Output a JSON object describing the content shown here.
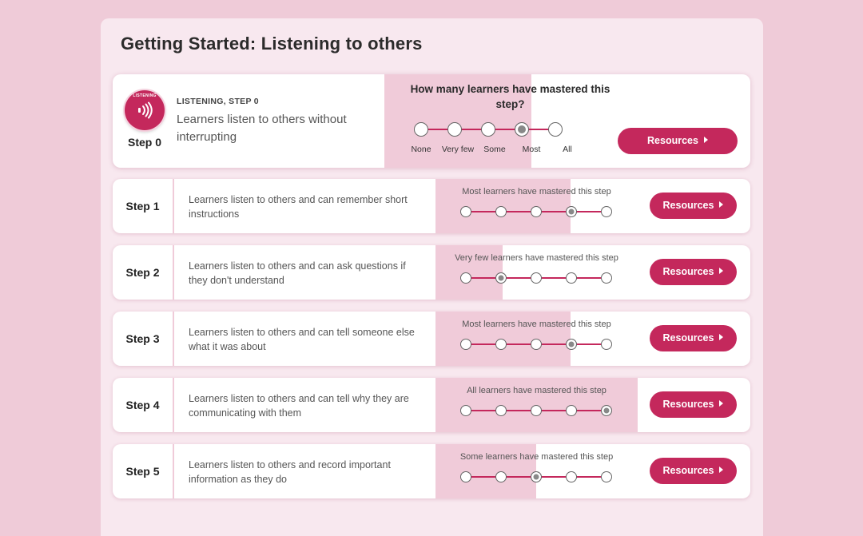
{
  "page": {
    "title": "Getting Started: Listening to others"
  },
  "scale_labels": [
    "None",
    "Very few",
    "Some",
    "Most",
    "All"
  ],
  "hero": {
    "badge_text": "LISTENING",
    "badge_icon": "sound-waves-icon",
    "step_label": "Step 0",
    "kicker": "LISTENING, STEP 0",
    "description": "Learners listen to others without interrupting",
    "question": "How many learners have mastered this step?",
    "selected_index": 3,
    "resources_label": "Resources"
  },
  "steps": [
    {
      "label": "Step 1",
      "description": "Learners listen to others and can remember short instructions",
      "status": "Most learners have mastered this step",
      "selected_index": 3,
      "resources_label": "Resources"
    },
    {
      "label": "Step 2",
      "description": "Learners listen to others and can ask questions if they don't understand",
      "status": "Very few learners have mastered this step",
      "selected_index": 1,
      "resources_label": "Resources"
    },
    {
      "label": "Step 3",
      "description": "Learners listen to others and can tell someone else what it was about",
      "status": "Most learners have mastered this step",
      "selected_index": 3,
      "resources_label": "Resources"
    },
    {
      "label": "Step 4",
      "description": "Learners listen to others and can tell why they are communicating with them",
      "status": "All learners have mastered this step",
      "selected_index": 4,
      "resources_label": "Resources"
    },
    {
      "label": "Step 5",
      "description": "Learners listen to others and record important information as they do",
      "status": "Some learners have mastered this step",
      "selected_index": 2,
      "resources_label": "Resources"
    }
  ],
  "colors": {
    "accent": "#c4285c",
    "fill": "#f0cbd9",
    "background": "#efcbd8",
    "panel": "#f8e8ef"
  }
}
